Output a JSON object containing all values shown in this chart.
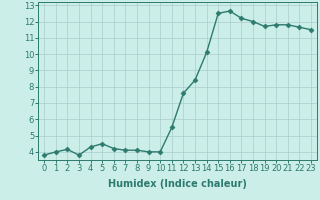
{
  "x": [
    0,
    1,
    2,
    3,
    4,
    5,
    6,
    7,
    8,
    9,
    10,
    11,
    12,
    13,
    14,
    15,
    16,
    17,
    18,
    19,
    20,
    21,
    22,
    23
  ],
  "y": [
    3.8,
    4.0,
    4.15,
    3.8,
    4.3,
    4.5,
    4.2,
    4.1,
    4.1,
    4.0,
    4.0,
    5.5,
    7.6,
    8.4,
    10.1,
    12.5,
    12.65,
    12.2,
    12.0,
    11.7,
    11.8,
    11.8,
    11.65,
    11.5
  ],
  "line_color": "#2d7a6e",
  "marker": "D",
  "marker_size": 2.5,
  "bg_color": "#cceee8",
  "grid_color": "#aacccc",
  "xlabel": "Humidex (Indice chaleur)",
  "ylim": [
    3.5,
    13.2
  ],
  "xlim": [
    -0.5,
    23.5
  ],
  "yticks": [
    4,
    5,
    6,
    7,
    8,
    9,
    10,
    11,
    12,
    13
  ],
  "xticks": [
    0,
    1,
    2,
    3,
    4,
    5,
    6,
    7,
    8,
    9,
    10,
    11,
    12,
    13,
    14,
    15,
    16,
    17,
    18,
    19,
    20,
    21,
    22,
    23
  ],
  "xlabel_fontsize": 7,
  "tick_fontsize": 6,
  "line_width": 1.0
}
